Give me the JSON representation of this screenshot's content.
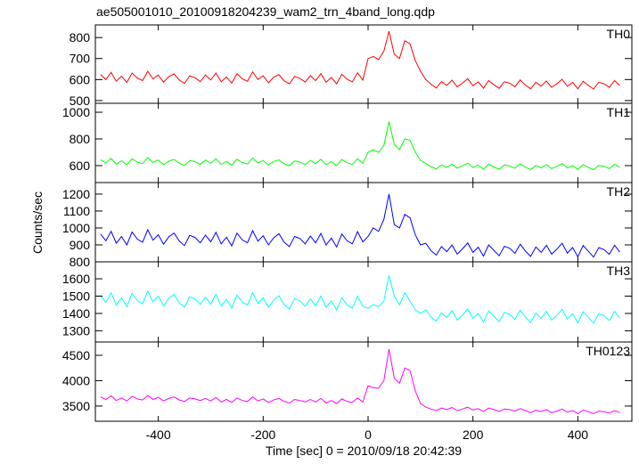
{
  "title": "ae505001010_20100918204239_wam2_trn_4band_long.qdp",
  "ylabel": "Counts/sec",
  "xlabel": "Time [sec] 0 = 2010/09/18 20:42:39",
  "chart_data": [
    {
      "type": "line",
      "xlim": [
        -520,
        503
      ],
      "xticks": [
        -400,
        -200,
        0,
        200,
        400
      ],
      "ylim": [
        487,
        860
      ],
      "yticks": [
        500,
        600,
        700,
        800
      ],
      "x": [
        -510,
        -500,
        -490,
        -480,
        -470,
        -460,
        -450,
        -440,
        -430,
        -420,
        -410,
        -400,
        -390,
        -380,
        -370,
        -360,
        -350,
        -340,
        -330,
        -320,
        -310,
        -300,
        -290,
        -280,
        -270,
        -260,
        -250,
        -240,
        -230,
        -220,
        -210,
        -200,
        -190,
        -180,
        -170,
        -160,
        -150,
        -140,
        -130,
        -120,
        -110,
        -100,
        -90,
        -80,
        -70,
        -60,
        -50,
        -40,
        -30,
        -20,
        -10,
        0,
        10,
        20,
        30,
        40,
        50,
        60,
        70,
        80,
        90,
        100,
        110,
        120,
        130,
        140,
        150,
        160,
        170,
        180,
        190,
        200,
        210,
        220,
        230,
        240,
        250,
        260,
        270,
        280,
        290,
        300,
        310,
        320,
        330,
        340,
        350,
        360,
        370,
        380,
        390,
        400,
        410,
        420,
        430,
        440,
        450,
        460,
        470,
        480
      ],
      "series": [
        {
          "name": "TH0",
          "color": "#ff0000",
          "values": [
            624,
            600,
            634,
            592,
            616,
            586,
            631,
            607,
            595,
            639,
            603,
            622,
            588,
            614,
            627,
            597,
            582,
            618,
            609,
            590,
            622,
            598,
            631,
            590,
            612,
            583,
            628,
            604,
            592,
            636,
            600,
            618,
            585,
            611,
            623,
            594,
            580,
            615,
            606,
            588,
            619,
            595,
            628,
            587,
            610,
            580,
            625,
            601,
            589,
            632,
            597,
            700,
            710,
            695,
            735,
            830,
            720,
            700,
            785,
            770,
            690,
            640,
            600,
            578,
            560,
            590,
            572,
            597,
            566,
            583,
            604,
            571,
            589,
            559,
            595,
            575,
            558,
            590,
            583,
            566,
            598,
            574,
            556,
            587,
            569,
            593,
            563,
            580,
            601,
            568,
            586,
            556,
            592,
            572,
            555,
            587,
            580,
            563,
            595,
            571
          ]
        }
      ]
    },
    {
      "type": "line",
      "xlim": [
        -520,
        503
      ],
      "xticks": [
        -400,
        -200,
        0,
        200,
        400
      ],
      "ylim": [
        473,
        1067
      ],
      "yticks": [
        600,
        800,
        1000
      ],
      "x": [
        -510,
        -500,
        -490,
        -480,
        -470,
        -460,
        -450,
        -440,
        -430,
        -420,
        -410,
        -400,
        -390,
        -380,
        -370,
        -360,
        -350,
        -340,
        -330,
        -320,
        -310,
        -300,
        -290,
        -280,
        -270,
        -260,
        -250,
        -240,
        -230,
        -220,
        -210,
        -200,
        -190,
        -180,
        -170,
        -160,
        -150,
        -140,
        -130,
        -120,
        -110,
        -100,
        -90,
        -80,
        -70,
        -60,
        -50,
        -40,
        -30,
        -20,
        -10,
        0,
        10,
        20,
        30,
        40,
        50,
        60,
        70,
        80,
        90,
        100,
        110,
        120,
        130,
        140,
        150,
        160,
        170,
        180,
        190,
        200,
        210,
        220,
        230,
        240,
        250,
        260,
        270,
        280,
        290,
        300,
        310,
        320,
        330,
        340,
        350,
        360,
        370,
        380,
        390,
        400,
        410,
        420,
        430,
        440,
        450,
        460,
        470,
        480
      ],
      "series": [
        {
          "name": "TH1",
          "color": "#00ff00",
          "values": [
            644,
            620,
            654,
            612,
            636,
            606,
            651,
            627,
            615,
            659,
            623,
            642,
            608,
            634,
            647,
            617,
            602,
            638,
            629,
            610,
            642,
            618,
            651,
            610,
            632,
            603,
            648,
            624,
            612,
            656,
            620,
            638,
            605,
            631,
            643,
            614,
            600,
            635,
            626,
            608,
            639,
            615,
            648,
            607,
            630,
            600,
            645,
            621,
            609,
            652,
            617,
            700,
            720,
            700,
            750,
            930,
            760,
            720,
            800,
            790,
            700,
            640,
            615,
            593,
            575,
            605,
            587,
            612,
            581,
            598,
            619,
            586,
            604,
            574,
            610,
            590,
            573,
            605,
            598,
            581,
            613,
            589,
            571,
            602,
            584,
            608,
            578,
            595,
            616,
            583,
            601,
            571,
            607,
            587,
            570,
            602,
            595,
            578,
            610,
            586
          ]
        }
      ]
    },
    {
      "type": "line",
      "xlim": [
        -520,
        503
      ],
      "xticks": [
        -400,
        -200,
        0,
        200,
        400
      ],
      "ylim": [
        800,
        1268
      ],
      "yticks": [
        800,
        900,
        1000,
        1100,
        1200
      ],
      "x": [
        -510,
        -500,
        -490,
        -480,
        -470,
        -460,
        -450,
        -440,
        -430,
        -420,
        -410,
        -400,
        -390,
        -380,
        -370,
        -360,
        -350,
        -340,
        -330,
        -320,
        -310,
        -300,
        -290,
        -280,
        -270,
        -260,
        -250,
        -240,
        -230,
        -220,
        -210,
        -200,
        -190,
        -180,
        -170,
        -160,
        -150,
        -140,
        -130,
        -120,
        -110,
        -100,
        -90,
        -80,
        -70,
        -60,
        -50,
        -40,
        -30,
        -20,
        -10,
        0,
        10,
        20,
        30,
        40,
        50,
        60,
        70,
        80,
        90,
        100,
        110,
        120,
        130,
        140,
        150,
        160,
        170,
        180,
        190,
        200,
        210,
        220,
        230,
        240,
        250,
        260,
        270,
        280,
        290,
        300,
        310,
        320,
        330,
        340,
        350,
        360,
        370,
        380,
        390,
        400,
        410,
        420,
        430,
        440,
        450,
        460,
        470,
        480
      ],
      "series": [
        {
          "name": "TH2",
          "color": "#0000ff",
          "values": [
            964,
            924,
            980,
            910,
            950,
            900,
            976,
            934,
            916,
            990,
            928,
            960,
            904,
            948,
            970,
            922,
            896,
            956,
            944,
            912,
            958,
            918,
            974,
            906,
            946,
            894,
            970,
            930,
            912,
            984,
            922,
            954,
            900,
            942,
            966,
            916,
            890,
            950,
            938,
            906,
            952,
            912,
            968,
            900,
            940,
            888,
            964,
            924,
            906,
            978,
            918,
            950,
            1000,
            980,
            1050,
            1200,
            1020,
            1000,
            1080,
            1060,
            960,
            900,
            910,
            866,
            840,
            890,
            860,
            900,
            846,
            876,
            912,
            856,
            886,
            834,
            900,
            868,
            836,
            892,
            880,
            850,
            904,
            864,
            832,
            888,
            856,
            898,
            846,
            874,
            910,
            852,
            884,
            830,
            896,
            862,
            828,
            884,
            872,
            844,
            898,
            858
          ]
        }
      ]
    },
    {
      "type": "line",
      "xlim": [
        -520,
        503
      ],
      "xticks": [
        -400,
        -200,
        0,
        200,
        400
      ],
      "ylim": [
        1235,
        1698
      ],
      "yticks": [
        1300,
        1400,
        1500,
        1600
      ],
      "x": [
        -510,
        -500,
        -490,
        -480,
        -470,
        -460,
        -450,
        -440,
        -430,
        -420,
        -410,
        -400,
        -390,
        -380,
        -370,
        -360,
        -350,
        -340,
        -330,
        -320,
        -310,
        -300,
        -290,
        -280,
        -270,
        -260,
        -250,
        -240,
        -230,
        -220,
        -210,
        -200,
        -190,
        -180,
        -170,
        -160,
        -150,
        -140,
        -130,
        -120,
        -110,
        -100,
        -90,
        -80,
        -70,
        -60,
        -50,
        -40,
        -30,
        -20,
        -10,
        0,
        10,
        20,
        30,
        40,
        50,
        60,
        70,
        80,
        90,
        100,
        110,
        120,
        130,
        140,
        150,
        160,
        170,
        180,
        190,
        200,
        210,
        220,
        230,
        240,
        250,
        260,
        270,
        280,
        290,
        300,
        310,
        320,
        330,
        340,
        350,
        360,
        370,
        380,
        390,
        400,
        410,
        420,
        430,
        440,
        450,
        460,
        470,
        480
      ],
      "series": [
        {
          "name": "TH3",
          "color": "#00ffff",
          "values": [
            1504,
            1464,
            1520,
            1450,
            1490,
            1440,
            1516,
            1474,
            1456,
            1530,
            1468,
            1500,
            1444,
            1488,
            1510,
            1462,
            1436,
            1496,
            1484,
            1452,
            1494,
            1454,
            1510,
            1442,
            1482,
            1430,
            1506,
            1466,
            1448,
            1520,
            1458,
            1490,
            1436,
            1478,
            1502,
            1452,
            1426,
            1486,
            1474,
            1442,
            1484,
            1444,
            1500,
            1436,
            1472,
            1420,
            1490,
            1450,
            1430,
            1500,
            1440,
            1430,
            1450,
            1440,
            1470,
            1620,
            1500,
            1450,
            1520,
            1470,
            1420,
            1400,
            1420,
            1380,
            1356,
            1404,
            1376,
            1416,
            1362,
            1390,
            1426,
            1372,
            1400,
            1350,
            1414,
            1384,
            1352,
            1406,
            1394,
            1366,
            1418,
            1380,
            1348,
            1402,
            1372,
            1412,
            1362,
            1388,
            1424,
            1368,
            1398,
            1346,
            1410,
            1378,
            1344,
            1398,
            1386,
            1360,
            1412,
            1374
          ]
        }
      ]
    },
    {
      "type": "line",
      "xlim": [
        -520,
        503
      ],
      "xticks": [
        -400,
        -200,
        0,
        200,
        400
      ],
      "ylim": [
        3200,
        4763
      ],
      "yticks": [
        3500,
        4000,
        4500
      ],
      "x": [
        -510,
        -500,
        -490,
        -480,
        -470,
        -460,
        -450,
        -440,
        -430,
        -420,
        -410,
        -400,
        -390,
        -380,
        -370,
        -360,
        -350,
        -340,
        -330,
        -320,
        -310,
        -300,
        -290,
        -280,
        -270,
        -260,
        -250,
        -240,
        -230,
        -220,
        -210,
        -200,
        -190,
        -180,
        -170,
        -160,
        -150,
        -140,
        -130,
        -120,
        -110,
        -100,
        -90,
        -80,
        -70,
        -60,
        -50,
        -40,
        -30,
        -20,
        -10,
        0,
        10,
        20,
        30,
        40,
        50,
        60,
        70,
        80,
        90,
        100,
        110,
        120,
        130,
        140,
        150,
        160,
        170,
        180,
        190,
        200,
        210,
        220,
        230,
        240,
        250,
        260,
        270,
        280,
        290,
        300,
        310,
        320,
        330,
        340,
        350,
        360,
        370,
        380,
        390,
        400,
        410,
        420,
        430,
        440,
        450,
        460,
        470,
        480
      ],
      "series": [
        {
          "name": "TH0123",
          "color": "#ff00ff",
          "values": [
            3680,
            3630,
            3700,
            3610,
            3660,
            3600,
            3690,
            3640,
            3620,
            3710,
            3630,
            3670,
            3600,
            3650,
            3680,
            3620,
            3590,
            3660,
            3640,
            3610,
            3650,
            3600,
            3670,
            3580,
            3630,
            3570,
            3660,
            3610,
            3590,
            3680,
            3600,
            3640,
            3570,
            3620,
            3650,
            3590,
            3560,
            3630,
            3610,
            3580,
            3630,
            3580,
            3650,
            3560,
            3610,
            3550,
            3640,
            3590,
            3570,
            3660,
            3580,
            3900,
            3860,
            3850,
            4000,
            4620,
            4050,
            3950,
            4250,
            4200,
            3800,
            3550,
            3480,
            3440,
            3410,
            3460,
            3430,
            3470,
            3410,
            3440,
            3480,
            3420,
            3450,
            3390,
            3460,
            3430,
            3390,
            3440,
            3430,
            3400,
            3450,
            3410,
            3370,
            3420,
            3390,
            3430,
            3370,
            3400,
            3440,
            3380,
            3410,
            3350,
            3420,
            3390,
            3350,
            3400,
            3390,
            3360,
            3410,
            3370
          ]
        }
      ]
    }
  ]
}
